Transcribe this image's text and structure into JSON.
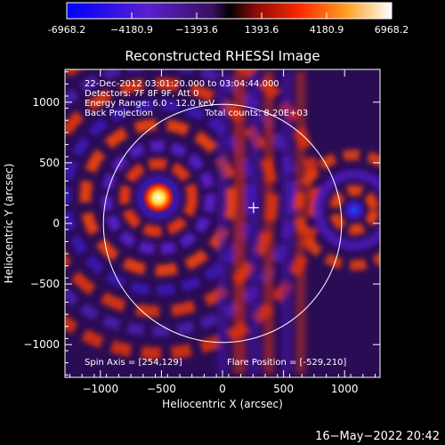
{
  "colorbar": {
    "tick_labels": [
      "-6968.2",
      "−4180.9",
      "−1393.6",
      "1393.6",
      "4180.9",
      "6968.2"
    ],
    "range": [
      -6968.2,
      6968.2
    ],
    "colormap": "blue-purple-black-red-yellow-white"
  },
  "image": {
    "title": "Reconstructed RHESSI Image",
    "info_lines": [
      "22-Dec-2012 03:01:20.000 to 03:04:44.000",
      "Detectors: 7F 8F 9F, Att 0",
      "Energy Range: 6.0 - 12.0 keV",
      "Back Projection"
    ],
    "total_counts": "Total counts: 8.20E+03",
    "spin_axis": "Spin Axis = [254,129]",
    "flare_position": "Flare Position = [-529,210]",
    "xlabel": "Heliocentric X (arcsec)",
    "ylabel": "Heliocentric Y (arcsec)",
    "x_ticks": [
      "−1000",
      "−500",
      "0",
      "500",
      "1000"
    ],
    "y_ticks": [
      "1000",
      "500",
      "0",
      "−500",
      "−1000"
    ],
    "x_range": [
      -1290,
      1290
    ],
    "y_range": [
      -1270,
      1270
    ],
    "solar_limb_radius_arcsec": 975,
    "crosshair_position_arcsec": [
      254,
      129
    ],
    "bright_sources_arcsec": [
      [
        -529,
        210
      ],
      [
        1100,
        100
      ]
    ]
  },
  "timestamp": "16−May−2022 20:42",
  "colors": {
    "background": "#000000",
    "text": "#ffffff",
    "negative": "#3a14b0",
    "positive": "#e23a10",
    "peak": "#ffe040"
  }
}
